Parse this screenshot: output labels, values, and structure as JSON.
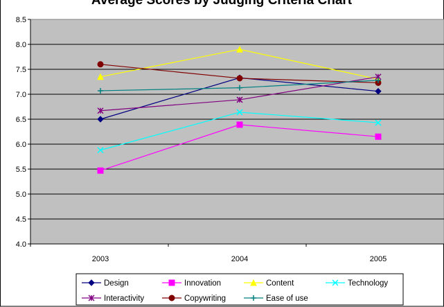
{
  "chart_data": {
    "type": "line",
    "title": "Average Scores by Judging Criteria Chart",
    "categories": [
      "2003",
      "2004",
      "2005"
    ],
    "y_ticks": [
      "4.0",
      "4.5",
      "5.0",
      "5.5",
      "6.0",
      "6.5",
      "7.0",
      "7.5",
      "8.0",
      "8.5"
    ],
    "ylim": [
      4.0,
      8.5
    ],
    "grid": true,
    "legend_position": "bottom",
    "plot_background": "#c0c0c0",
    "series": [
      {
        "name": "Design",
        "color": "#000080",
        "marker": "diamond",
        "values": [
          6.5,
          7.33,
          7.06
        ]
      },
      {
        "name": "Innovation",
        "color": "#ff00ff",
        "marker": "square",
        "values": [
          5.47,
          6.39,
          6.15
        ]
      },
      {
        "name": "Content",
        "color": "#ffff00",
        "marker": "triangle",
        "values": [
          7.35,
          7.9,
          7.3
        ]
      },
      {
        "name": "Technology",
        "color": "#00ffff",
        "marker": "x",
        "values": [
          5.88,
          6.64,
          6.43
        ]
      },
      {
        "name": "Interactivity",
        "color": "#800080",
        "marker": "star",
        "values": [
          6.67,
          6.89,
          7.35
        ]
      },
      {
        "name": "Copywriting",
        "color": "#800000",
        "marker": "circle",
        "values": [
          7.6,
          7.32,
          7.23
        ]
      },
      {
        "name": "Ease of use",
        "color": "#008080",
        "marker": "plus",
        "values": [
          7.07,
          7.13,
          7.28
        ]
      }
    ]
  }
}
